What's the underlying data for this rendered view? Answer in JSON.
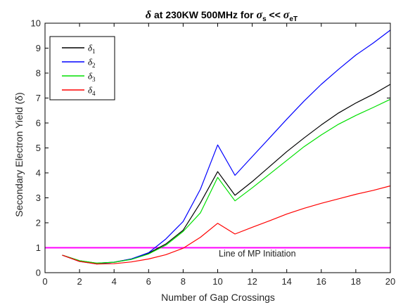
{
  "chart_data": {
    "type": "line",
    "title": "δ at 230KW 500MHz for σs << σeT",
    "title_parts": {
      "lead": "δ",
      "mid": " at 230KW 500MHz for ",
      "sigma_s": "σ",
      "sub_s": "s",
      "cmp": " << ",
      "sigma_et": "σ",
      "sub_et": "eT"
    },
    "xlabel": "Number of Gap Crossings",
    "ylabel": "Secondary Electron Yield (δ)",
    "xlim": [
      0,
      20
    ],
    "ylim": [
      0,
      10
    ],
    "xticks": [
      "0",
      "2",
      "4",
      "6",
      "8",
      "10",
      "12",
      "14",
      "16",
      "18",
      "20"
    ],
    "yticks": [
      "0",
      "1",
      "2",
      "3",
      "4",
      "5",
      "6",
      "7",
      "8",
      "9",
      "10"
    ],
    "grid": false,
    "legend_position": "top-left",
    "x": [
      1,
      2,
      3,
      4,
      5,
      6,
      7,
      8,
      9,
      10,
      11,
      12,
      13,
      14,
      15,
      16,
      17,
      18,
      19,
      20
    ],
    "series": [
      {
        "name": "δ1",
        "symbol": "δ",
        "sub": "1",
        "color": "#000000",
        "values": [
          0.7,
          0.48,
          0.38,
          0.42,
          0.55,
          0.78,
          1.15,
          1.7,
          2.8,
          4.05,
          3.1,
          3.65,
          4.25,
          4.85,
          5.4,
          5.92,
          6.4,
          6.8,
          7.15,
          7.55
        ]
      },
      {
        "name": "δ2",
        "symbol": "δ",
        "sub": "2",
        "color": "#0000ff",
        "values": [
          0.7,
          0.45,
          0.35,
          0.42,
          0.55,
          0.8,
          1.35,
          2.05,
          3.35,
          5.12,
          3.9,
          4.65,
          5.4,
          6.15,
          6.88,
          7.55,
          8.15,
          8.72,
          9.2,
          9.72
        ]
      },
      {
        "name": "δ3",
        "symbol": "δ",
        "sub": "3",
        "color": "#00e000",
        "values": [
          0.7,
          0.48,
          0.38,
          0.42,
          0.53,
          0.75,
          1.1,
          1.65,
          2.4,
          3.82,
          2.88,
          3.4,
          3.95,
          4.5,
          5.05,
          5.52,
          5.95,
          6.3,
          6.62,
          6.95
        ]
      },
      {
        "name": "δ4",
        "symbol": "δ",
        "sub": "4",
        "color": "#ff0000",
        "values": [
          0.7,
          0.45,
          0.35,
          0.36,
          0.43,
          0.55,
          0.72,
          0.98,
          1.42,
          1.98,
          1.55,
          1.82,
          2.08,
          2.35,
          2.58,
          2.78,
          2.96,
          3.14,
          3.3,
          3.48
        ]
      }
    ],
    "reference_line": {
      "y": 1.0,
      "color": "#ff00ff",
      "label": "Line of MP Initiation"
    }
  }
}
